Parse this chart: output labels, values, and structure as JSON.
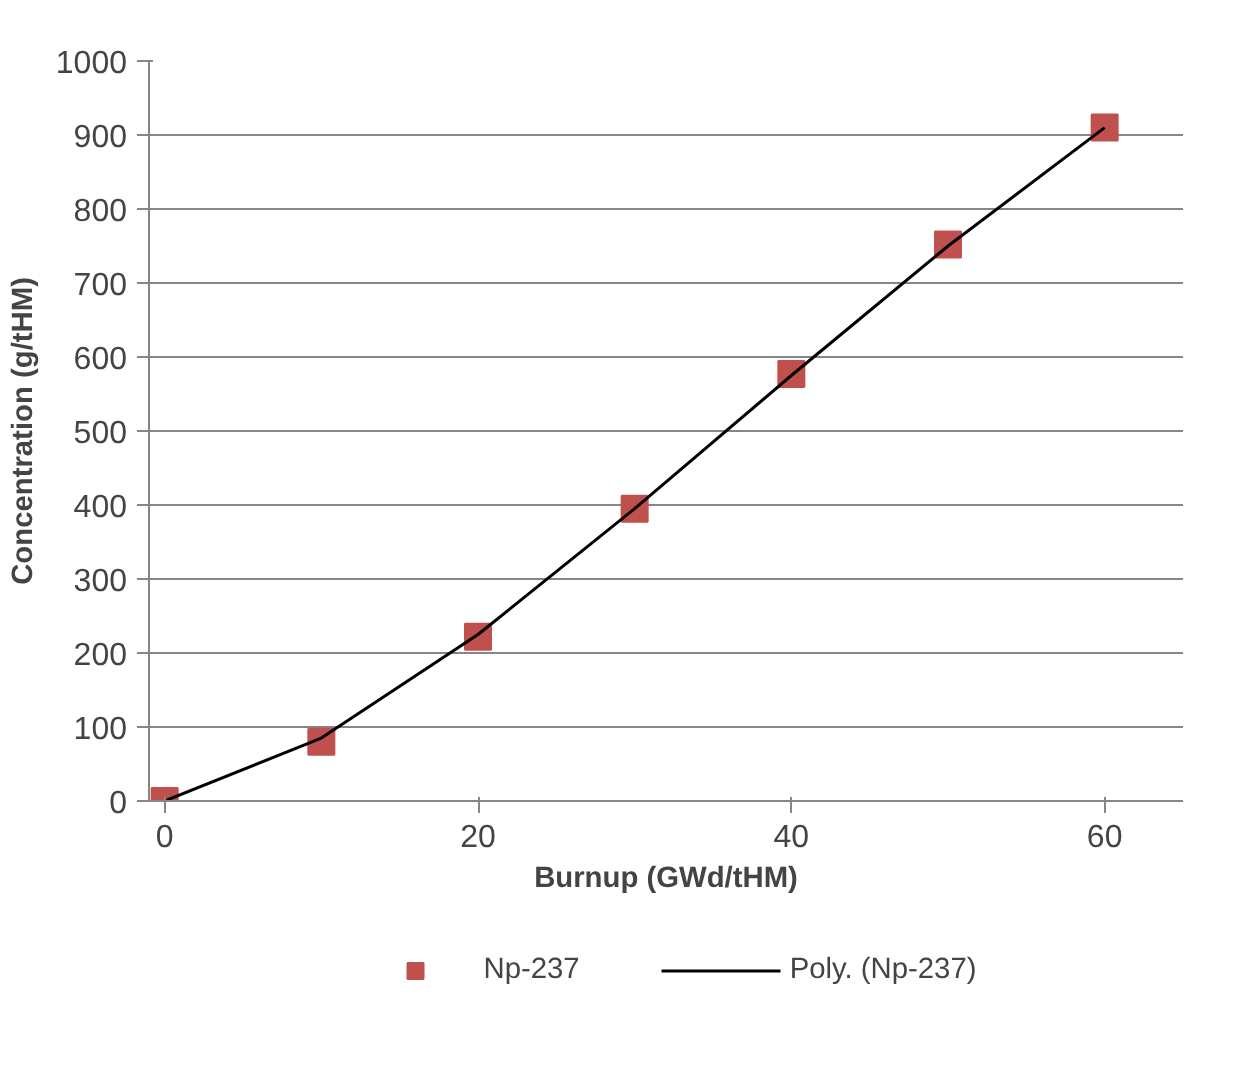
{
  "chart_data": {
    "type": "scatter",
    "xlabel": "Burnup (GWd/tHM)",
    "ylabel": "Concentration (g/tHM)",
    "xlim": [
      -1,
      65
    ],
    "ylim": [
      0,
      1000
    ],
    "xticks": [
      0,
      20,
      40,
      60
    ],
    "yticks": [
      0,
      100,
      200,
      300,
      400,
      500,
      600,
      700,
      800,
      900,
      1000
    ],
    "grid": "y",
    "legend": "bottom",
    "series": [
      {
        "name": "Np-237",
        "marker": "square",
        "color": "#c0504d",
        "x": [
          0,
          10,
          20,
          30,
          40,
          50,
          60
        ],
        "values": [
          0,
          80,
          222,
          395,
          577,
          752,
          910
        ]
      },
      {
        "name": "Poly. (Np-237)",
        "type": "line",
        "line_style": "solid",
        "color": "#000000",
        "x": [
          0,
          10,
          20,
          30,
          40,
          50,
          60
        ],
        "values": [
          0,
          85,
          225,
          395,
          575,
          750,
          910
        ]
      }
    ]
  }
}
